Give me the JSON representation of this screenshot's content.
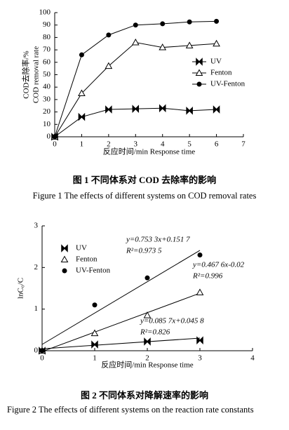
{
  "chart_data": [
    {
      "type": "line",
      "y_label_zh": "COD去除率/%",
      "y_label_en": "COD removal rate",
      "x_label": "反应时间/min Response time",
      "x": [
        0,
        1,
        2,
        3,
        4,
        5,
        6
      ],
      "series": [
        {
          "name": "UV",
          "color": "#000000",
          "marker": "bowtie",
          "values": [
            0,
            16,
            22,
            22.5,
            23,
            21,
            22
          ]
        },
        {
          "name": "Fenton",
          "color": "#000000",
          "marker": "triangle",
          "values": [
            0,
            35,
            57,
            76,
            72,
            73.5,
            75
          ]
        },
        {
          "name": "UV-Fenton",
          "color": "#000000",
          "marker": "circle",
          "values": [
            0,
            66,
            82,
            90,
            91,
            92.5,
            93
          ]
        }
      ],
      "xlim": [
        0,
        7
      ],
      "xticks": [
        0,
        1,
        2,
        3,
        4,
        5,
        6,
        7
      ],
      "ylim": [
        0,
        100
      ],
      "yticks": [
        0,
        10,
        20,
        30,
        40,
        50,
        60,
        70,
        80,
        90,
        100
      ],
      "legend": "right",
      "caption_zh": "图 1   不同体系对 COD 去除率的影响",
      "caption_en": "Figure 1   The effects of different systems on COD removal rates"
    },
    {
      "type": "scatter",
      "y_label": "lnC₀/C",
      "x_label": "反应时间/min Response time",
      "series": [
        {
          "name": "UV",
          "color": "#000000",
          "marker": "bowtie",
          "x": [
            0,
            1,
            2,
            3
          ],
          "values": [
            0,
            0.15,
            0.22,
            0.25
          ],
          "fit": {
            "slope": 0.0857,
            "intercept": 0.0458,
            "x": [
              0,
              3
            ]
          },
          "equation": "y=0.085 7x+0.045 8",
          "r2": "R²=0.826"
        },
        {
          "name": "Fenton",
          "color": "#000000",
          "marker": "triangle",
          "x": [
            0,
            1,
            2,
            3
          ],
          "values": [
            0,
            0.42,
            0.85,
            1.4
          ],
          "fit": {
            "slope": 0.4676,
            "intercept": -0.02,
            "x": [
              0,
              3
            ]
          },
          "equation": "y=0.467 6x-0.02",
          "r2": "R²=0.996"
        },
        {
          "name": "UV-Fenton",
          "color": "#000000",
          "marker": "circle",
          "x": [
            0,
            1,
            2,
            3
          ],
          "values": [
            0,
            1.1,
            1.75,
            2.3
          ],
          "fit": {
            "slope": 0.7533,
            "intercept": 0.1517,
            "x": [
              0,
              3
            ]
          },
          "equation": "y=0.753 3x+0.151 7",
          "r2": "R²=0.973 5"
        }
      ],
      "xlim": [
        0,
        4
      ],
      "xticks": [
        0,
        1,
        2,
        3,
        4
      ],
      "ylim": [
        0,
        3
      ],
      "yticks": [
        0,
        1,
        2,
        3
      ],
      "legend": "upper left",
      "caption_zh": "图 2   不同体系对降解速率的影响",
      "caption_en": "Figure 2   The effects of different systems on the reaction rate constants"
    }
  ]
}
